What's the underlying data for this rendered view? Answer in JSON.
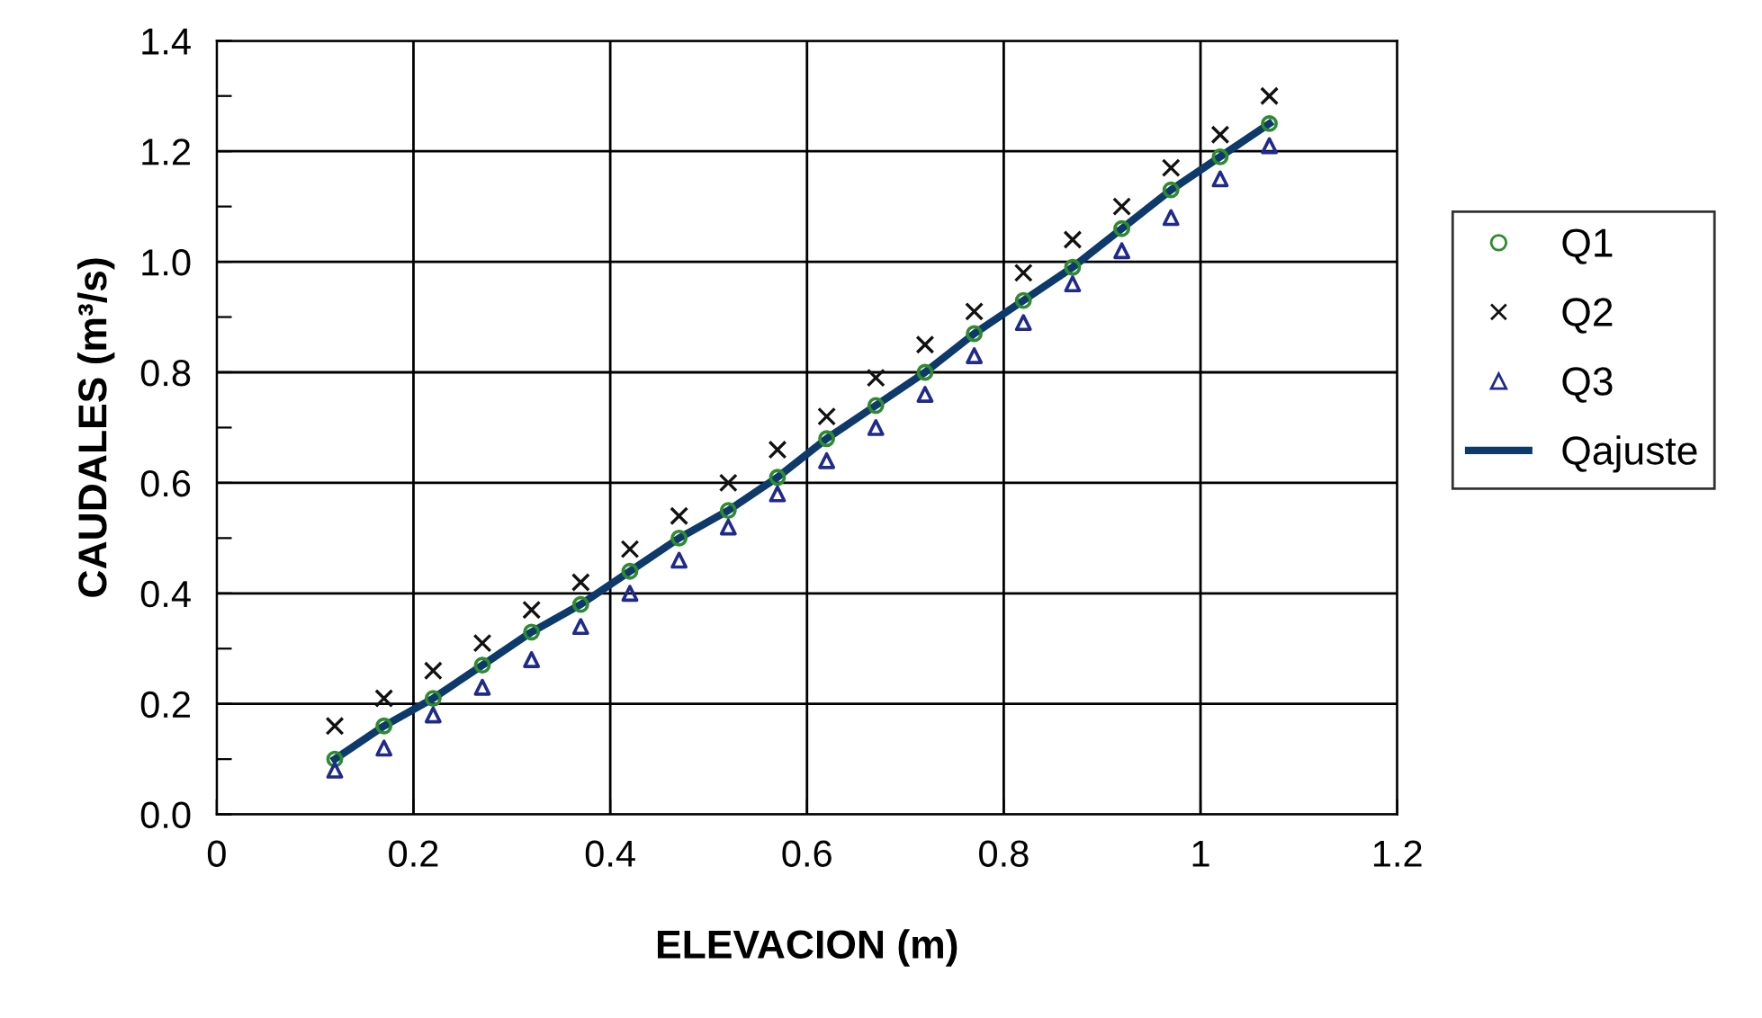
{
  "chart_data": {
    "type": "scatter",
    "xlabel": "ELEVACION (m)",
    "ylabel": "CAUDALES (m³/s)",
    "xlim": [
      0,
      1.2
    ],
    "ylim": [
      0,
      1.4
    ],
    "xticks": [
      0,
      0.2,
      0.4,
      0.6,
      0.8,
      1,
      1.2
    ],
    "yticks": [
      {
        "value": 0,
        "label": "0.0"
      },
      {
        "value": 0.1,
        "label": null
      },
      {
        "value": 0.2,
        "label": "0.2"
      },
      {
        "value": 0.3,
        "label": null
      },
      {
        "value": 0.4,
        "label": "0.4"
      },
      {
        "value": 0.5,
        "label": null
      },
      {
        "value": 0.6,
        "label": "0.6"
      },
      {
        "value": 0.7,
        "label": null
      },
      {
        "value": 0.8,
        "label": "0.8"
      },
      {
        "value": 0.9,
        "label": null
      },
      {
        "value": 1.0,
        "label": "1.0"
      },
      {
        "value": 1.1,
        "label": null
      },
      {
        "value": 1.2,
        "label": "1.2"
      },
      {
        "value": 1.3,
        "label": null
      },
      {
        "value": 1.4,
        "label": "1.4"
      }
    ],
    "grid": true,
    "legend": "right",
    "x": [
      0.12,
      0.17,
      0.22,
      0.27,
      0.32,
      0.37,
      0.42,
      0.47,
      0.52,
      0.57,
      0.62,
      0.67,
      0.72,
      0.77,
      0.82,
      0.87,
      0.92,
      0.97,
      1.02,
      1.07
    ],
    "series": [
      {
        "name": "Q1",
        "marker": "circle",
        "color": "#2e8b2e",
        "values": [
          0.1,
          0.16,
          0.21,
          0.27,
          0.33,
          0.38,
          0.44,
          0.5,
          0.55,
          0.61,
          0.68,
          0.74,
          0.8,
          0.87,
          0.93,
          0.99,
          1.06,
          1.13,
          1.19,
          1.25
        ]
      },
      {
        "name": "Q2",
        "marker": "cross",
        "color": "#111111",
        "values": [
          0.16,
          0.21,
          0.26,
          0.31,
          0.37,
          0.42,
          0.48,
          0.54,
          0.6,
          0.66,
          0.72,
          0.79,
          0.85,
          0.91,
          0.98,
          1.04,
          1.1,
          1.17,
          1.23,
          1.3
        ]
      },
      {
        "name": "Q3",
        "marker": "triangle",
        "color": "#1f2a8a",
        "values": [
          0.08,
          0.12,
          0.18,
          0.23,
          0.28,
          0.34,
          0.4,
          0.46,
          0.52,
          0.58,
          0.64,
          0.7,
          0.76,
          0.83,
          0.89,
          0.96,
          1.02,
          1.08,
          1.15,
          1.21
        ]
      },
      {
        "name": "Qajuste",
        "type": "line",
        "marker": "none",
        "line_style": "solid",
        "color": "#0d3a6b",
        "values": [
          0.1,
          0.16,
          0.21,
          0.27,
          0.33,
          0.38,
          0.44,
          0.5,
          0.55,
          0.61,
          0.68,
          0.74,
          0.8,
          0.87,
          0.93,
          0.99,
          1.06,
          1.13,
          1.19,
          1.25
        ]
      }
    ]
  }
}
